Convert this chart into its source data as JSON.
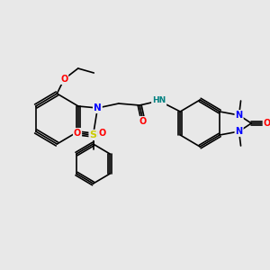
{
  "background": "#e8e8e8",
  "bond_color": "#000000",
  "colors": {
    "N": "#0000ff",
    "O": "#ff0000",
    "S": "#cccc00",
    "H": "#008080",
    "C": "#000000"
  }
}
